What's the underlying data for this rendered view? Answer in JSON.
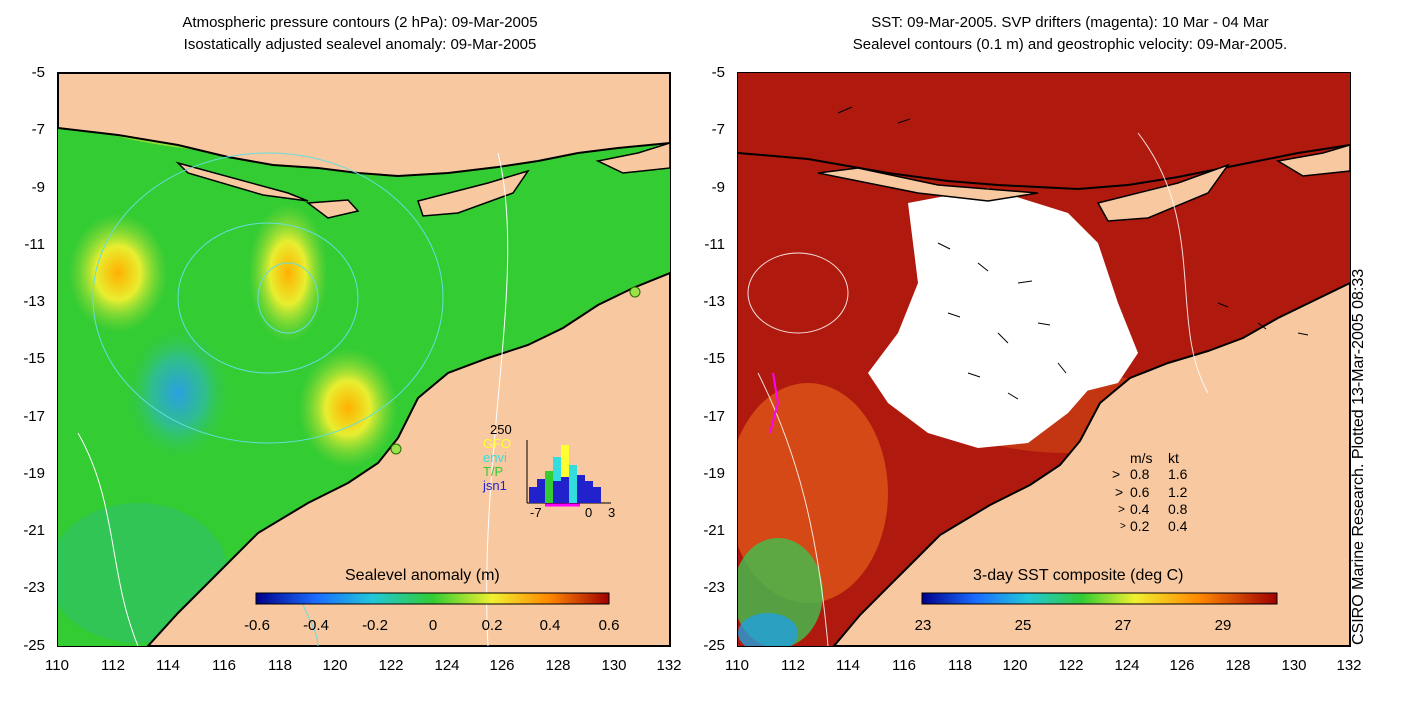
{
  "left_panel": {
    "title_line1": "Atmospheric pressure contours (2 hPa): 09-Mar-2005",
    "title_line2": "Isostatically adjusted sealevel anomaly: 09-Mar-2005",
    "colorbar_label": "Sealevel anomaly (m)",
    "colorbar_ticks": [
      "-0.6",
      "-0.4",
      "-0.2",
      "0",
      "0.2",
      "0.4",
      "0.6"
    ],
    "histogram": {
      "ymax_label": "250",
      "x_ticks": [
        "-7",
        "0",
        "3"
      ],
      "legend": [
        {
          "label": "GFO",
          "color": "#ffff33"
        },
        {
          "label": "envi",
          "color": "#33dddd"
        },
        {
          "label": "T/P",
          "color": "#33cc33"
        },
        {
          "label": "jsn1",
          "color": "#2222cc"
        }
      ]
    }
  },
  "right_panel": {
    "title_line1": "SST: 09-Mar-2005. SVP drifters (magenta): 10 Mar - 04 Mar",
    "title_line2": "Sealevel contours (0.1 m) and geostrophic velocity: 09-Mar-2005.",
    "colorbar_label": "3-day SST composite (deg C)",
    "colorbar_ticks": [
      "23",
      "25",
      "27",
      "29"
    ],
    "velocity_legend": {
      "header_ms": "m/s",
      "header_kt": "kt",
      "rows": [
        {
          "ms": "0.8",
          "kt": "1.6"
        },
        {
          "ms": "0.6",
          "kt": "1.2"
        },
        {
          "ms": "0.4",
          "kt": "0.8"
        },
        {
          "ms": "0.2",
          "kt": "0.4"
        }
      ]
    }
  },
  "y_axis_labels": [
    "-5",
    "-7",
    "-9",
    "-11",
    "-13",
    "-15",
    "-17",
    "-19",
    "-21",
    "-23",
    "-25"
  ],
  "x_axis_labels": [
    "110",
    "112",
    "114",
    "116",
    "118",
    "120",
    "122",
    "124",
    "126",
    "128",
    "130",
    "132"
  ],
  "side_note": "CSIRO Marine Research. Plotted 13-Mar-2005 08:33",
  "colors": {
    "land": "#f8c9a0",
    "ocean_green": "#33cc33",
    "sst_dark": "#b01a0e",
    "cloud": "#ffffff"
  }
}
